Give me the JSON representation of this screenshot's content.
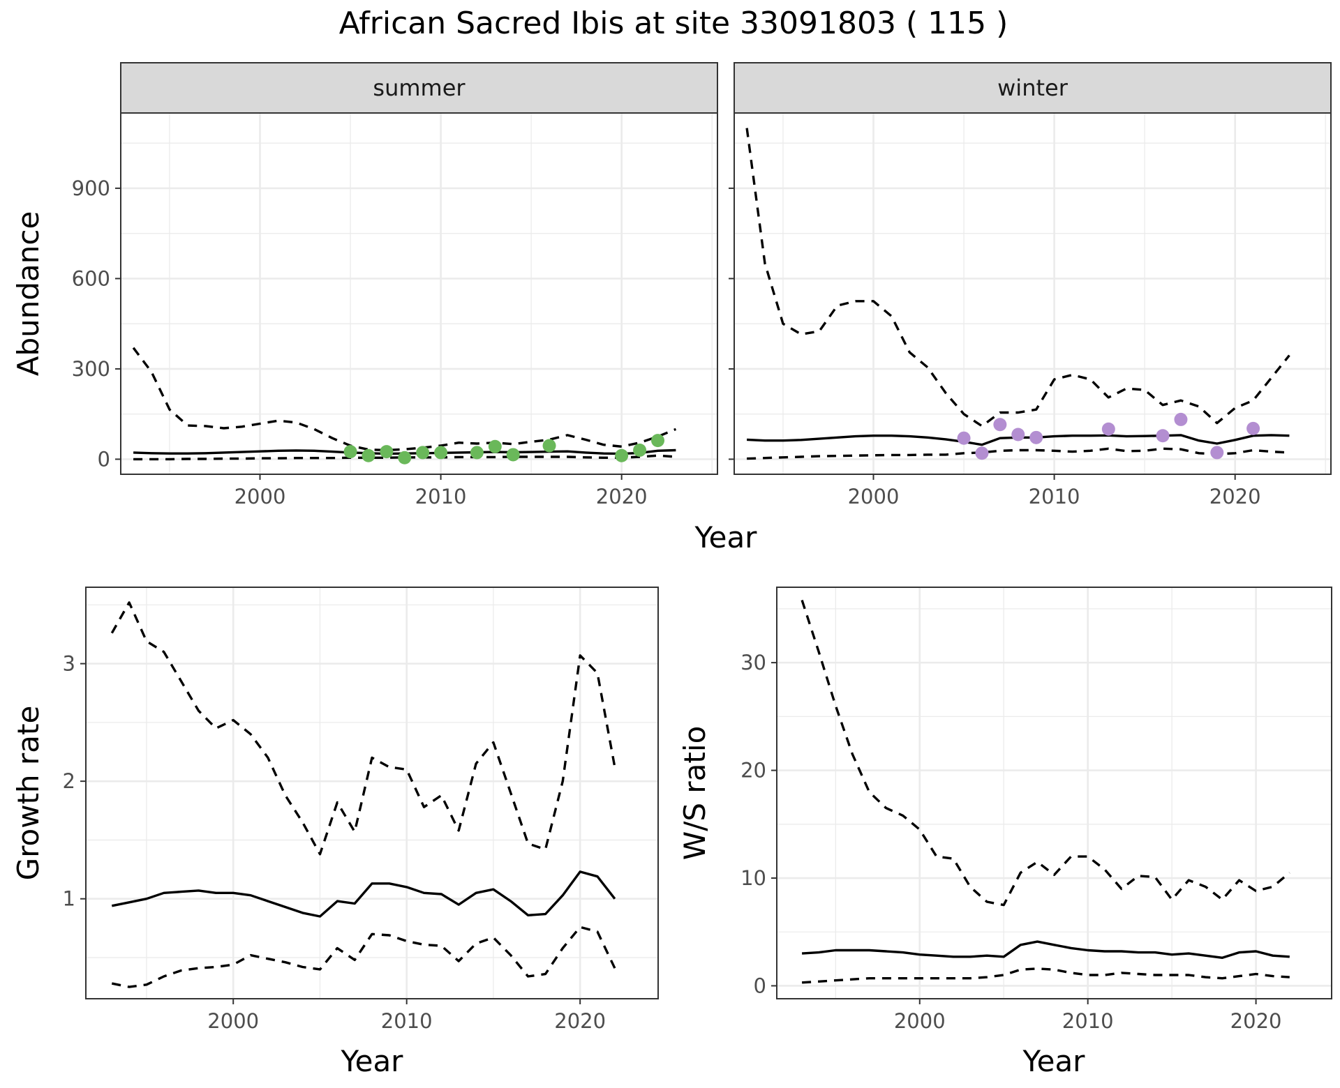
{
  "figure": {
    "title": "African Sacred Ibis at site 33091803 ( 115 )",
    "top_xlabel": "Year"
  },
  "colors": {
    "summer_points": "#6ab85a",
    "winter_points": "#b38ed1",
    "lines": "#000000",
    "strip": "#d9d9d9"
  },
  "chart_data": [
    {
      "id": "summer",
      "type": "line",
      "strip": "summer",
      "xlabel": "",
      "ylabel": "Abundance",
      "xlim": [
        1992.3,
        2025.3
      ],
      "ylim": [
        -50,
        1150
      ],
      "xticks": [
        2000,
        2010,
        2020
      ],
      "yticks": [
        0,
        300,
        600,
        900
      ],
      "grid": true,
      "series": [
        {
          "role": "estimate",
          "style": "solid",
          "x": [
            1993,
            1994,
            1995,
            1996,
            1997,
            1998,
            1999,
            2000,
            2001,
            2002,
            2003,
            2004,
            2005,
            2006,
            2007,
            2008,
            2009,
            2010,
            2011,
            2012,
            2013,
            2014,
            2015,
            2016,
            2017,
            2018,
            2019,
            2020,
            2021,
            2022,
            2023
          ],
          "y": [
            22,
            20,
            19,
            19,
            20,
            22,
            24,
            26,
            28,
            29,
            28,
            25,
            22,
            20,
            18,
            19,
            20,
            21,
            22,
            23,
            24,
            23,
            24,
            25,
            26,
            22,
            19,
            18,
            21,
            28,
            30
          ]
        },
        {
          "role": "upper",
          "style": "dashed",
          "x": [
            1993,
            1994,
            1995,
            1996,
            1997,
            1998,
            1999,
            2000,
            2001,
            2002,
            2003,
            2004,
            2005,
            2006,
            2007,
            2008,
            2009,
            2010,
            2011,
            2012,
            2013,
            2014,
            2015,
            2016,
            2017,
            2018,
            2019,
            2020,
            2021,
            2022,
            2023
          ],
          "y": [
            370,
            290,
            165,
            112,
            110,
            103,
            108,
            118,
            128,
            122,
            100,
            70,
            45,
            32,
            30,
            33,
            38,
            45,
            55,
            52,
            55,
            50,
            58,
            65,
            80,
            65,
            48,
            42,
            55,
            75,
            100
          ]
        },
        {
          "role": "lower",
          "style": "dashed",
          "x": [
            1993,
            1994,
            1995,
            1996,
            1997,
            1998,
            1999,
            2000,
            2001,
            2002,
            2003,
            2004,
            2005,
            2006,
            2007,
            2008,
            2009,
            2010,
            2011,
            2012,
            2013,
            2014,
            2015,
            2016,
            2017,
            2018,
            2019,
            2020,
            2021,
            2022,
            2023
          ],
          "y": [
            0,
            0,
            0,
            1,
            1,
            2,
            2,
            3,
            3,
            4,
            4,
            4,
            5,
            5,
            5,
            6,
            6,
            6,
            7,
            7,
            7,
            8,
            8,
            8,
            8,
            6,
            5,
            5,
            8,
            12,
            8
          ]
        },
        {
          "role": "observed",
          "style": "points",
          "x": [
            2005,
            2006,
            2007,
            2008,
            2009,
            2010,
            2012,
            2013,
            2014,
            2016,
            2020,
            2021,
            2022
          ],
          "y": [
            25,
            12,
            25,
            5,
            22,
            22,
            22,
            42,
            15,
            45,
            12,
            30,
            62
          ]
        }
      ]
    },
    {
      "id": "winter",
      "type": "line",
      "strip": "winter",
      "xlabel": "",
      "ylabel": "",
      "xlim": [
        1992.3,
        2025.3
      ],
      "ylim": [
        -50,
        1150
      ],
      "xticks": [
        2000,
        2010,
        2020
      ],
      "yticks": [
        0,
        300,
        600,
        900
      ],
      "grid": true,
      "series": [
        {
          "role": "estimate",
          "style": "solid",
          "x": [
            1993,
            1994,
            1995,
            1996,
            1997,
            1998,
            1999,
            2000,
            2001,
            2002,
            2003,
            2004,
            2005,
            2006,
            2007,
            2008,
            2009,
            2010,
            2011,
            2012,
            2013,
            2014,
            2015,
            2016,
            2017,
            2018,
            2019,
            2020,
            2021,
            2022,
            2023
          ],
          "y": [
            65,
            62,
            62,
            64,
            68,
            72,
            76,
            78,
            78,
            76,
            72,
            66,
            58,
            48,
            70,
            72,
            72,
            76,
            78,
            78,
            79,
            76,
            77,
            78,
            80,
            62,
            52,
            64,
            78,
            80,
            78
          ]
        },
        {
          "role": "upper",
          "style": "dashed",
          "x": [
            1993,
            1994,
            1995,
            1996,
            1997,
            1998,
            1999,
            2000,
            2001,
            2002,
            2003,
            2004,
            2005,
            2006,
            2007,
            2008,
            2009,
            2010,
            2011,
            2012,
            2013,
            2014,
            2015,
            2016,
            2017,
            2018,
            2019,
            2020,
            2021,
            2022,
            2023
          ],
          "y": [
            1100,
            650,
            450,
            415,
            425,
            510,
            525,
            525,
            475,
            355,
            305,
            220,
            150,
            110,
            155,
            155,
            165,
            265,
            280,
            265,
            205,
            235,
            230,
            180,
            195,
            175,
            120,
            170,
            195,
            270,
            345
          ]
        },
        {
          "role": "lower",
          "style": "dashed",
          "x": [
            1993,
            1994,
            1995,
            1996,
            1997,
            1998,
            1999,
            2000,
            2001,
            2002,
            2003,
            2004,
            2005,
            2006,
            2007,
            2008,
            2009,
            2010,
            2011,
            2012,
            2013,
            2014,
            2015,
            2016,
            2017,
            2018,
            2019,
            2020,
            2021,
            2022,
            2023
          ],
          "y": [
            2,
            4,
            6,
            8,
            10,
            11,
            12,
            13,
            14,
            14,
            15,
            15,
            20,
            22,
            28,
            30,
            30,
            28,
            25,
            28,
            35,
            27,
            28,
            35,
            33,
            20,
            17,
            20,
            30,
            25,
            22
          ]
        },
        {
          "role": "observed",
          "style": "points",
          "x": [
            2005,
            2006,
            2007,
            2008,
            2009,
            2013,
            2016,
            2017,
            2019,
            2021
          ],
          "y": [
            70,
            20,
            115,
            82,
            72,
            100,
            78,
            132,
            22,
            102
          ]
        }
      ]
    },
    {
      "id": "growth",
      "type": "line",
      "xlabel": "Year",
      "ylabel": "Growth rate",
      "xlim": [
        1991.5,
        2024.5
      ],
      "ylim": [
        0.15,
        3.65
      ],
      "xticks": [
        2000,
        2010,
        2020
      ],
      "yticks": [
        1,
        2,
        3
      ],
      "grid": true,
      "series": [
        {
          "role": "estimate",
          "style": "solid",
          "x": [
            1993,
            1994,
            1995,
            1996,
            1997,
            1998,
            1999,
            2000,
            2001,
            2002,
            2003,
            2004,
            2005,
            2006,
            2007,
            2008,
            2009,
            2010,
            2011,
            2012,
            2013,
            2014,
            2015,
            2016,
            2017,
            2018,
            2019,
            2020,
            2021,
            2022
          ],
          "y": [
            0.94,
            0.97,
            1.0,
            1.05,
            1.06,
            1.07,
            1.05,
            1.05,
            1.03,
            0.98,
            0.93,
            0.88,
            0.85,
            0.98,
            0.96,
            1.13,
            1.13,
            1.1,
            1.05,
            1.04,
            0.95,
            1.05,
            1.08,
            0.98,
            0.86,
            0.87,
            1.03,
            1.23,
            1.19,
            1.0
          ]
        },
        {
          "role": "upper",
          "style": "dashed",
          "x": [
            1993,
            1994,
            1995,
            1996,
            1997,
            1998,
            1999,
            2000,
            2001,
            2002,
            2003,
            2004,
            2005,
            2006,
            2007,
            2008,
            2009,
            2010,
            2011,
            2012,
            2013,
            2014,
            2015,
            2016,
            2017,
            2018,
            2019,
            2020,
            2021,
            2022
          ],
          "y": [
            3.26,
            3.52,
            3.19,
            3.1,
            2.85,
            2.6,
            2.45,
            2.52,
            2.4,
            2.2,
            1.88,
            1.65,
            1.38,
            1.82,
            1.57,
            2.2,
            2.12,
            2.1,
            1.78,
            1.88,
            1.58,
            2.15,
            2.33,
            1.9,
            1.47,
            1.42,
            2.0,
            3.07,
            2.92,
            2.12
          ]
        },
        {
          "role": "lower",
          "style": "dashed",
          "x": [
            1993,
            1994,
            1995,
            1996,
            1997,
            1998,
            1999,
            2000,
            2001,
            2002,
            2003,
            2004,
            2005,
            2006,
            2007,
            2008,
            2009,
            2010,
            2011,
            2012,
            2013,
            2014,
            2015,
            2016,
            2017,
            2018,
            2019,
            2020,
            2021,
            2022
          ],
          "y": [
            0.28,
            0.25,
            0.27,
            0.34,
            0.39,
            0.41,
            0.42,
            0.44,
            0.52,
            0.49,
            0.46,
            0.42,
            0.4,
            0.58,
            0.48,
            0.7,
            0.69,
            0.64,
            0.61,
            0.6,
            0.47,
            0.62,
            0.67,
            0.52,
            0.34,
            0.36,
            0.58,
            0.76,
            0.72,
            0.41
          ]
        }
      ]
    },
    {
      "id": "ratio",
      "type": "line",
      "xlabel": "Year",
      "ylabel": "W/S ratio",
      "xlim": [
        1991.5,
        2024.5
      ],
      "ylim": [
        -1.2,
        37
      ],
      "xticks": [
        2000,
        2010,
        2020
      ],
      "yticks": [
        0,
        10,
        20,
        30
      ],
      "grid": true,
      "series": [
        {
          "role": "estimate",
          "style": "solid",
          "x": [
            1993,
            1994,
            1995,
            1996,
            1997,
            1998,
            1999,
            2000,
            2001,
            2002,
            2003,
            2004,
            2005,
            2006,
            2007,
            2008,
            2009,
            2010,
            2011,
            2012,
            2013,
            2014,
            2015,
            2016,
            2017,
            2018,
            2019,
            2020,
            2021,
            2022
          ],
          "y": [
            3.0,
            3.1,
            3.3,
            3.3,
            3.3,
            3.2,
            3.1,
            2.9,
            2.8,
            2.7,
            2.7,
            2.8,
            2.7,
            3.8,
            4.1,
            3.8,
            3.5,
            3.3,
            3.2,
            3.2,
            3.1,
            3.1,
            2.9,
            3.0,
            2.8,
            2.6,
            3.1,
            3.2,
            2.8,
            2.7
          ]
        },
        {
          "role": "upper",
          "style": "dashed",
          "x": [
            1993,
            1994,
            1995,
            1996,
            1997,
            1998,
            1999,
            2000,
            2001,
            2002,
            2003,
            2004,
            2005,
            2006,
            2007,
            2008,
            2009,
            2010,
            2011,
            2012,
            2013,
            2014,
            2015,
            2016,
            2017,
            2018,
            2019,
            2020,
            2021,
            2022
          ],
          "y": [
            35.8,
            31.0,
            26.0,
            21.5,
            18.0,
            16.5,
            15.8,
            14.5,
            12.0,
            11.8,
            9.2,
            7.8,
            7.5,
            10.5,
            11.5,
            10.3,
            12.0,
            12.0,
            10.8,
            9.0,
            10.2,
            10.1,
            8.0,
            9.8,
            9.2,
            8.0,
            9.8,
            8.8,
            9.2,
            10.5
          ]
        },
        {
          "role": "lower",
          "style": "dashed",
          "x": [
            1993,
            1994,
            1995,
            1996,
            1997,
            1998,
            1999,
            2000,
            2001,
            2002,
            2003,
            2004,
            2005,
            2006,
            2007,
            2008,
            2009,
            2010,
            2011,
            2012,
            2013,
            2014,
            2015,
            2016,
            2017,
            2018,
            2019,
            2020,
            2021,
            2022
          ],
          "y": [
            0.3,
            0.4,
            0.5,
            0.6,
            0.7,
            0.7,
            0.7,
            0.7,
            0.7,
            0.7,
            0.7,
            0.8,
            1.0,
            1.5,
            1.6,
            1.5,
            1.2,
            1.0,
            1.0,
            1.2,
            1.1,
            1.0,
            1.0,
            1.0,
            0.8,
            0.7,
            0.9,
            1.1,
            0.9,
            0.8
          ]
        }
      ]
    }
  ]
}
